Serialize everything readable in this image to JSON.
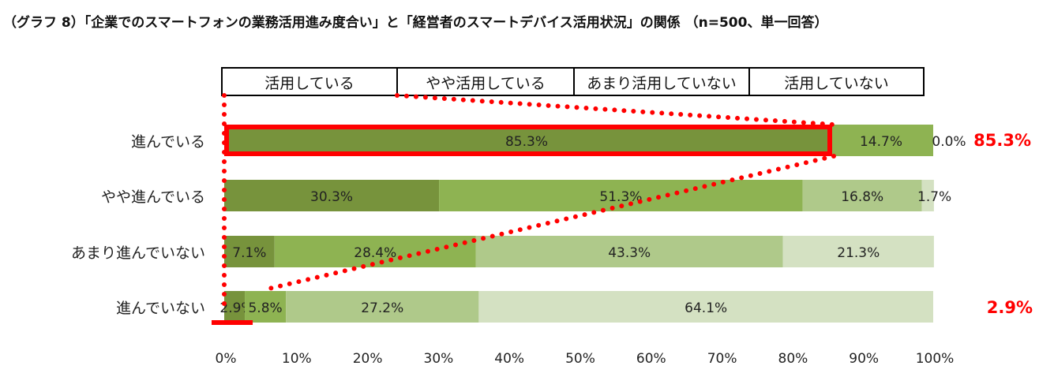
{
  "title": "（グラフ 8）「企業でのスマートフォンの業務活用進み度合い」と「経営者のスマートデバイス活用状況」の関係 （n=500、単一回答）",
  "chart_data": {
    "type": "bar",
    "orientation": "horizontal",
    "stacked": "percent",
    "categories": [
      "進んでいる",
      "やや進んでいる",
      "あまり進んでいない",
      "進んでいない"
    ],
    "series": [
      {
        "name": "活用している",
        "values": [
          85.3,
          30.3,
          7.1,
          2.9
        ],
        "labels": [
          "85.3%",
          "30.3%",
          "7.1%",
          "2.9%"
        ]
      },
      {
        "name": "やや活用している",
        "values": [
          14.7,
          51.3,
          28.4,
          5.8
        ],
        "labels": [
          "14.7%",
          "51.3%",
          "28.4%",
          "5.8%"
        ]
      },
      {
        "name": "あまり活用していない",
        "values": [
          0.0,
          16.8,
          43.3,
          27.2
        ],
        "labels": [
          "0.0%",
          "16.8%",
          "43.3%",
          "27.2%"
        ]
      },
      {
        "name": "活用していない",
        "values": [
          0.0,
          1.7,
          21.3,
          64.1
        ],
        "labels": [
          "",
          "1.7%",
          "21.3%",
          "64.1%"
        ]
      }
    ],
    "xlim": [
      0,
      100
    ],
    "xticks": [
      0,
      10,
      20,
      30,
      40,
      50,
      60,
      70,
      80,
      90,
      100
    ],
    "xtick_labels": [
      "0%",
      "10%",
      "20%",
      "30%",
      "40%",
      "50%",
      "60%",
      "70%",
      "80%",
      "90%",
      "100%"
    ],
    "legend_position": "top",
    "grid": false,
    "highlight": {
      "category": "進んでいる",
      "series": "活用している",
      "label": "85.3%"
    },
    "highlight2": {
      "category": "進んでいない",
      "series": "活用している",
      "label": "2.9%"
    },
    "colors": [
      "#77933c",
      "#8eb352",
      "#afc98a",
      "#d4e1c2"
    ],
    "highlight_color": "#ff0000"
  }
}
